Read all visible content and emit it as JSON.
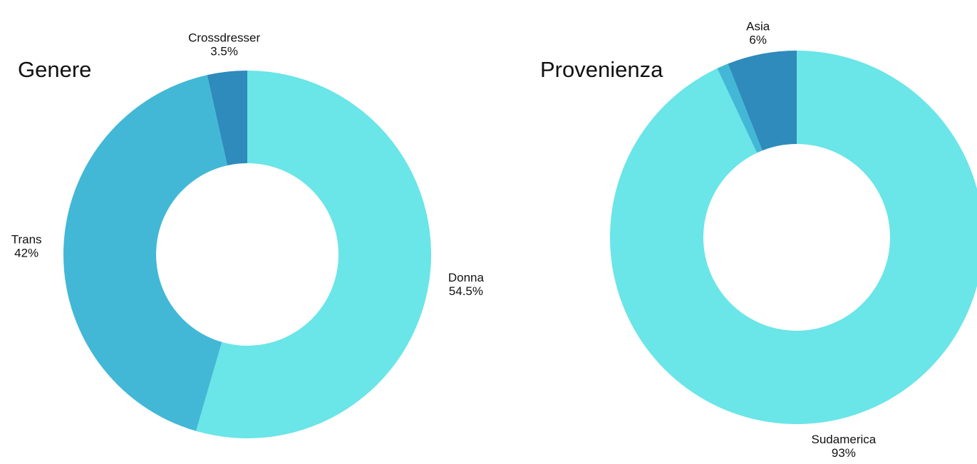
{
  "chart_data": [
    {
      "type": "donut",
      "title": "Genere",
      "categories": [
        "Donna",
        "Trans",
        "Crossdresser"
      ],
      "values": [
        54.5,
        42,
        3.5
      ],
      "value_labels": [
        "54.5%",
        "42%",
        "3.5%"
      ],
      "colors": [
        "#6ae5e8",
        "#42b8d6",
        "#2e8bbb"
      ]
    },
    {
      "type": "donut",
      "title": "Provenienza",
      "categories": [
        "Sudamerica",
        null,
        "Asia"
      ],
      "values": [
        93,
        1,
        6
      ],
      "value_labels": [
        "93%",
        null,
        "6%"
      ],
      "colors": [
        "#6ae5e8",
        "#42b8d6",
        "#2e8bbb"
      ]
    }
  ]
}
